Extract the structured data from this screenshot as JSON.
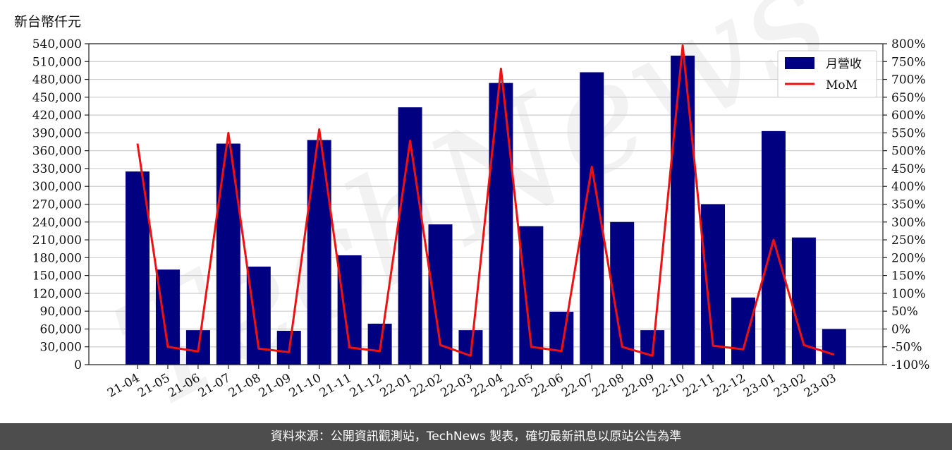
{
  "unit_label": "新台幣仟元",
  "footer_text": "資料來源：公開資訊觀測站，TechNews 製表，確切最新訊息以原站公告為準",
  "watermark_text": "TechNews",
  "colors": {
    "bar": "#000080",
    "line": "#ee1111",
    "grid": "#cccccc",
    "footer_bg": "#4d4d4d"
  },
  "chart_data": {
    "type": "bar",
    "categories": [
      "21-04",
      "21-05",
      "21-06",
      "21-07",
      "21-08",
      "21-09",
      "21-10",
      "21-11",
      "21-12",
      "22-01",
      "22-02",
      "22-03",
      "22-04",
      "22-05",
      "22-06",
      "22-07",
      "22-08",
      "22-09",
      "22-10",
      "22-11",
      "22-12",
      "23-01",
      "23-02",
      "23-03"
    ],
    "series": [
      {
        "name": "月營收",
        "type": "bar",
        "axis": "left",
        "values": [
          325000,
          160000,
          58000,
          372000,
          165000,
          57000,
          378000,
          184000,
          69000,
          433000,
          236000,
          58000,
          474000,
          233000,
          89000,
          492000,
          240000,
          58000,
          520000,
          270000,
          113000,
          393000,
          214000,
          60000
        ]
      },
      {
        "name": "MoM",
        "type": "line",
        "axis": "right",
        "values": [
          520,
          -50,
          -63,
          550,
          -55,
          -65,
          560,
          -52,
          -62,
          528,
          -45,
          -75,
          730,
          -50,
          -62,
          455,
          -50,
          -75,
          795,
          -47,
          -57,
          250,
          -45,
          -72
        ]
      }
    ],
    "y_left": {
      "min": 0,
      "max": 540000,
      "ticks": [
        0,
        30000,
        60000,
        90000,
        120000,
        150000,
        180000,
        210000,
        240000,
        270000,
        300000,
        330000,
        360000,
        390000,
        420000,
        450000,
        480000,
        510000,
        540000
      ],
      "tick_labels": [
        "0",
        "30,000",
        "60,000",
        "90,000",
        "120,000",
        "150,000",
        "180,000",
        "210,000",
        "240,000",
        "270,000",
        "300,000",
        "330,000",
        "360,000",
        "390,000",
        "420,000",
        "450,000",
        "480,000",
        "510,000",
        "540,000"
      ]
    },
    "y_right": {
      "min": -100,
      "max": 800,
      "ticks": [
        -100,
        -50,
        0,
        50,
        100,
        150,
        200,
        250,
        300,
        350,
        400,
        450,
        500,
        550,
        600,
        650,
        700,
        750,
        800
      ],
      "tick_labels": [
        "-100%",
        "-50%",
        "0%",
        "50%",
        "100%",
        "150%",
        "200%",
        "250%",
        "300%",
        "350%",
        "400%",
        "450%",
        "500%",
        "550%",
        "600%",
        "650%",
        "700%",
        "750%",
        "800%"
      ]
    },
    "grid": true,
    "legend_position": "top-right"
  }
}
